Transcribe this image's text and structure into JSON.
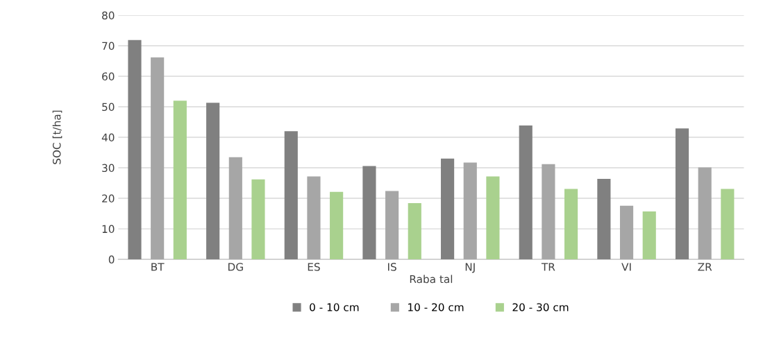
{
  "chart_data": {
    "type": "bar",
    "xlabel": "Raba tal",
    "ylabel": "SOC [t/ha]",
    "categories": [
      "BT",
      "DG",
      "ES",
      "IS",
      "NJ",
      "TR",
      "VI",
      "ZR"
    ],
    "series": [
      {
        "name": "0 - 10 cm",
        "color": "#808080",
        "values": [
          71.9,
          51.3,
          42.0,
          30.6,
          33.0,
          43.9,
          26.4,
          42.9
        ]
      },
      {
        "name": "10 - 20 cm",
        "color": "#a6a6a6",
        "values": [
          66.2,
          33.5,
          27.2,
          22.4,
          31.7,
          31.2,
          17.6,
          30.1
        ]
      },
      {
        "name": "20 - 30 cm",
        "color": "#a9d18e",
        "values": [
          52.0,
          26.2,
          22.1,
          18.4,
          27.2,
          23.1,
          15.7,
          23.1
        ]
      }
    ],
    "ylim": [
      0,
      80
    ],
    "yticks": [
      0,
      10,
      20,
      30,
      40,
      50,
      60,
      70,
      80
    ],
    "grid": "y",
    "legend": "bottom"
  }
}
